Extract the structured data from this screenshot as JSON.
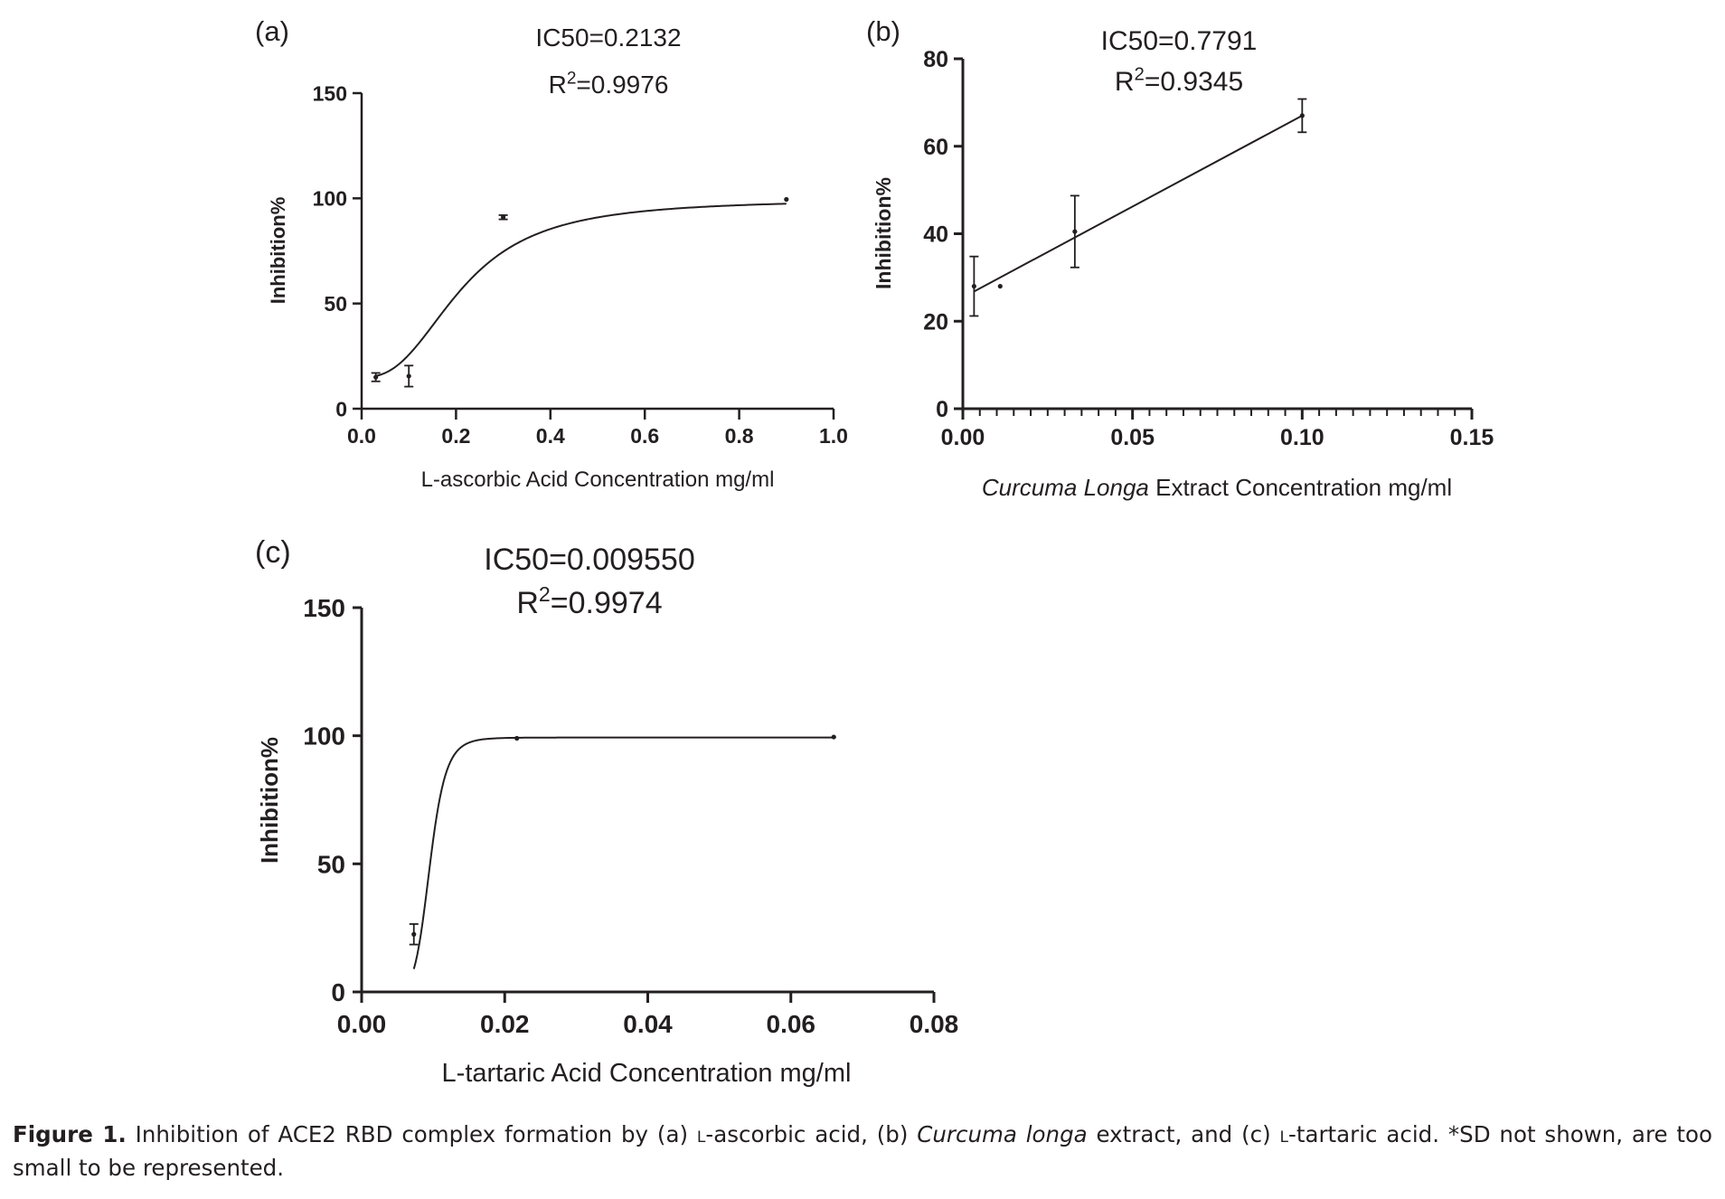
{
  "chart_data": [
    {
      "panel_label": "(a)",
      "type": "scatter",
      "fit": "sigmoidal dose-response curve",
      "stats": {
        "ic50": "IC50=0.2132",
        "r2_prefix": "R",
        "r2_sup": "2",
        "r2_value": "=0.9976"
      },
      "xlabel": "L-ascorbic Acid Concentration mg/ml",
      "ylabel": "Inhibition%",
      "xlim": [
        0,
        1.0
      ],
      "ylim": [
        0,
        150
      ],
      "xticks": [
        "0.0",
        "0.2",
        "0.4",
        "0.6",
        "0.8",
        "1.0"
      ],
      "yticks": [
        "0",
        "50",
        "100",
        "150"
      ],
      "points": [
        {
          "x": 0.03,
          "y": 15.0,
          "sd": 2.0
        },
        {
          "x": 0.1,
          "y": 15.5,
          "sd": 5.0
        },
        {
          "x": 0.3,
          "y": 91.0,
          "sd": 1.0
        },
        {
          "x": 0.9,
          "y": 99.5,
          "sd": 0
        }
      ],
      "curve": {
        "bottom": 15,
        "top": 99.5,
        "x50": 0.2132,
        "slope": 12
      }
    },
    {
      "panel_label": "(b)",
      "type": "scatter",
      "fit": "linear",
      "stats": {
        "ic50": "IC50=0.7791",
        "r2_prefix": "R",
        "r2_sup": "2",
        "r2_value": "=0.9345"
      },
      "xlabel_italic": "Curcuma Longa",
      "xlabel": " Extract Concentration mg/ml",
      "ylabel": "Inhibition%",
      "xlim": [
        0,
        0.15
      ],
      "ylim": [
        0,
        80
      ],
      "xticks": [
        "0.00",
        "0.05",
        "0.10",
        "0.15"
      ],
      "yticks": [
        "0",
        "20",
        "40",
        "60",
        "80"
      ],
      "points": [
        {
          "x": 0.0033,
          "y": 28.0,
          "sd": 6.8
        },
        {
          "x": 0.011,
          "y": 28.0,
          "sd": 0
        },
        {
          "x": 0.033,
          "y": 40.5,
          "sd": 8.2
        },
        {
          "x": 0.1,
          "y": 67.0,
          "sd": 3.8
        }
      ],
      "line": {
        "x": [
          0.0033,
          0.1
        ],
        "y": [
          26.8,
          67.0
        ]
      }
    },
    {
      "panel_label": "(c)",
      "type": "scatter",
      "fit": "sigmoidal dose-response curve",
      "stats": {
        "ic50": "IC50=0.009550",
        "r2_prefix": "R",
        "r2_sup": "2",
        "r2_value": "=0.9974"
      },
      "xlabel": "L-tartaric Acid Concentration mg/ml",
      "ylabel": "Inhibition%",
      "xlim": [
        0,
        0.08
      ],
      "ylim": [
        0,
        150
      ],
      "xticks": [
        "0.00",
        "0.02",
        "0.04",
        "0.06",
        "0.08"
      ],
      "yticks": [
        "0",
        "50",
        "100",
        "150"
      ],
      "points": [
        {
          "x": 0.0073,
          "y": 22.5,
          "sd": 4.0
        },
        {
          "x": 0.0217,
          "y": 99.0,
          "sd": 0
        },
        {
          "x": 0.066,
          "y": 99.5,
          "sd": 0
        }
      ],
      "curve": {
        "bottom": 0,
        "top": 99.3,
        "x50": 0.00955,
        "slope": 900,
        "x_start": 0.0073
      }
    }
  ],
  "caption": {
    "label": "Figure 1.",
    "part1": " Inhibition of ACE2 RBD complex formation by (a) ",
    "smallcaps_l_1": "l",
    "part2": "-ascorbic acid, (b) ",
    "italic": "Curcuma longa",
    "part3": " extract, and (c) ",
    "smallcaps_l_2": "l",
    "part4": "-tartaric acid. *SD not shown, are too small to be represented."
  }
}
